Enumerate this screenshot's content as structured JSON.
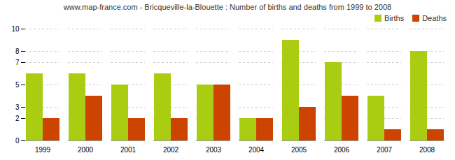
{
  "chart_data": {
    "type": "bar",
    "title": "www.map-france.com - Bricqueville-la-Blouette : Number of births and deaths from 1999 to 2008",
    "categories": [
      "1999",
      "2000",
      "2001",
      "2002",
      "2003",
      "2004",
      "2005",
      "2006",
      "2007",
      "2008"
    ],
    "series": [
      {
        "name": "Births",
        "color": "#aacc11",
        "values": [
          6,
          6,
          5,
          6,
          5,
          2,
          9,
          7,
          4,
          8
        ]
      },
      {
        "name": "Deaths",
        "color": "#cc4400",
        "values": [
          2,
          4,
          2,
          2,
          5,
          2,
          3,
          4,
          1,
          1
        ]
      }
    ],
    "ylim": [
      0,
      10
    ],
    "yticks": [
      0,
      2,
      3,
      5,
      7,
      8,
      10
    ],
    "grid": true,
    "legend": "upper right"
  }
}
